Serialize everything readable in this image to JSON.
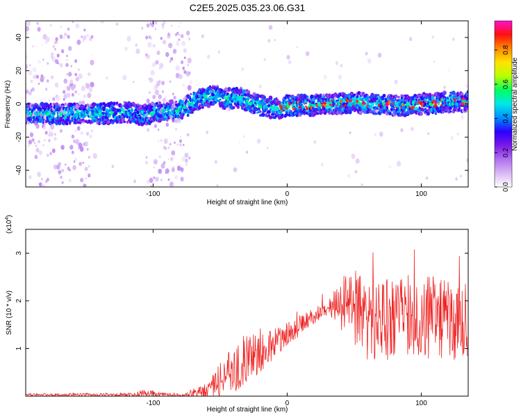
{
  "title": "C2E5.2025.035.23.06.G31",
  "colors": {
    "snr_line": "#ee2222",
    "frame": "#000000",
    "colormap": [
      "#ffffff",
      "#d9b8f5",
      "#b070f0",
      "#7a18e8",
      "#2a00ff",
      "#0090ff",
      "#00e8e8",
      "#00ff60",
      "#b8ff00",
      "#ffe400",
      "#ff8a00",
      "#ff1010",
      "#ff10d0"
    ]
  },
  "chart_data": [
    {
      "type": "heatmap",
      "xlabel": "Height of straight line (km)",
      "ylabel": "Frequency (Hz)",
      "xlim": [
        -195,
        135
      ],
      "ylim": [
        -50,
        50
      ],
      "x_ticks": [
        -100,
        0,
        100
      ],
      "y_ticks": [
        -40,
        -20,
        0,
        20,
        40
      ],
      "colorbar": {
        "label": "Normalized spectral amplitude",
        "range": [
          0,
          0.97
        ],
        "ticks": [
          0.0,
          0.2,
          0.4,
          0.6,
          0.8
        ]
      },
      "ridge": {
        "x": [
          -195,
          -160,
          -140,
          -120,
          -105,
          -100,
          -80,
          -72,
          -65,
          -55,
          -45,
          -35,
          -25,
          -15,
          -5,
          0,
          10,
          20,
          30,
          40,
          50,
          60,
          70,
          80,
          90,
          100,
          110,
          120,
          130,
          135
        ],
        "freq": [
          -6,
          -6,
          -6,
          -5,
          -7,
          -5,
          -4,
          0,
          3,
          5,
          3,
          4,
          0,
          -2,
          -3,
          -1,
          -1,
          -1,
          0,
          0,
          1,
          0,
          0,
          -1,
          -1,
          0,
          0,
          1,
          1,
          2
        ]
      },
      "noise_bands_x": [
        [
          -195,
          -145
        ],
        [
          -105,
          -72
        ]
      ]
    },
    {
      "type": "line",
      "xlabel": "Height of straight line (km)",
      "ylabel": "SNR (10 * v/v)",
      "multiplier_label": "(x10",
      "multiplier_exp": "4",
      "multiplier_close": ")",
      "xlim": [
        -195,
        135
      ],
      "ylim": [
        0,
        3.5
      ],
      "x_ticks": [
        -100,
        0,
        100
      ],
      "y_ticks": [
        1,
        2,
        3
      ],
      "envelope": {
        "x": [
          -195,
          -150,
          -120,
          -105,
          -95,
          -80,
          -60,
          -45,
          -30,
          -15,
          0,
          15,
          30,
          40,
          50,
          60,
          80,
          100,
          120,
          135
        ],
        "mean": [
          0.03,
          0.03,
          0.03,
          0.06,
          0.04,
          0.02,
          0.12,
          0.45,
          0.75,
          1.0,
          1.3,
          1.6,
          1.85,
          2.0,
          1.85,
          1.65,
          1.65,
          1.7,
          1.6,
          1.55
        ],
        "spread": [
          0.02,
          0.03,
          0.04,
          0.08,
          0.05,
          0.03,
          0.15,
          0.45,
          0.55,
          0.35,
          0.25,
          0.2,
          0.15,
          0.6,
          0.8,
          0.9,
          0.9,
          0.9,
          0.85,
          0.8
        ]
      }
    }
  ]
}
